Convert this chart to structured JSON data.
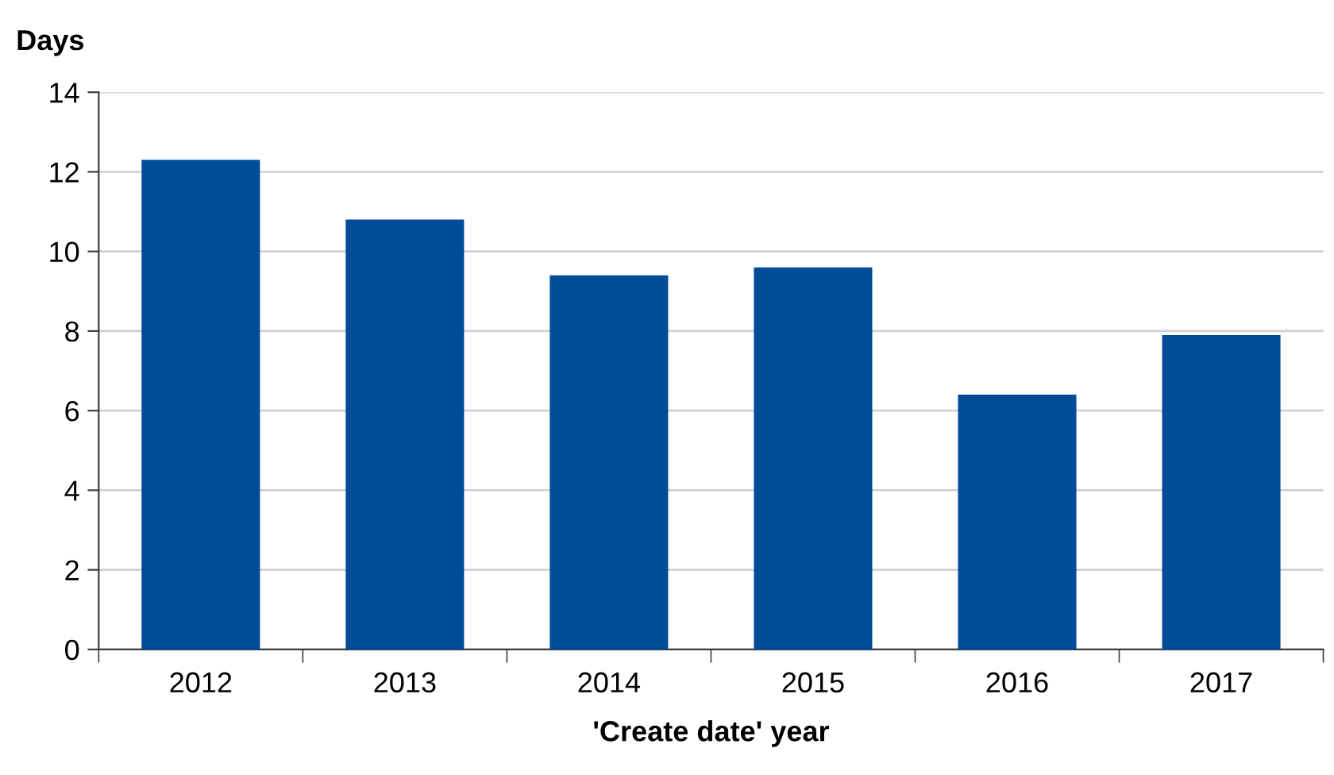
{
  "chart_data": {
    "type": "bar",
    "ylabel": "Days",
    "xlabel": "'Create date' year",
    "categories": [
      "2012",
      "2013",
      "2014",
      "2015",
      "2016",
      "2017"
    ],
    "values": [
      12.3,
      10.8,
      9.4,
      9.6,
      6.4,
      7.9
    ],
    "color": "#004c97",
    "ylim": [
      0,
      14
    ],
    "yticks": [
      0,
      2,
      4,
      6,
      8,
      10,
      12,
      14
    ],
    "grid": "y"
  }
}
